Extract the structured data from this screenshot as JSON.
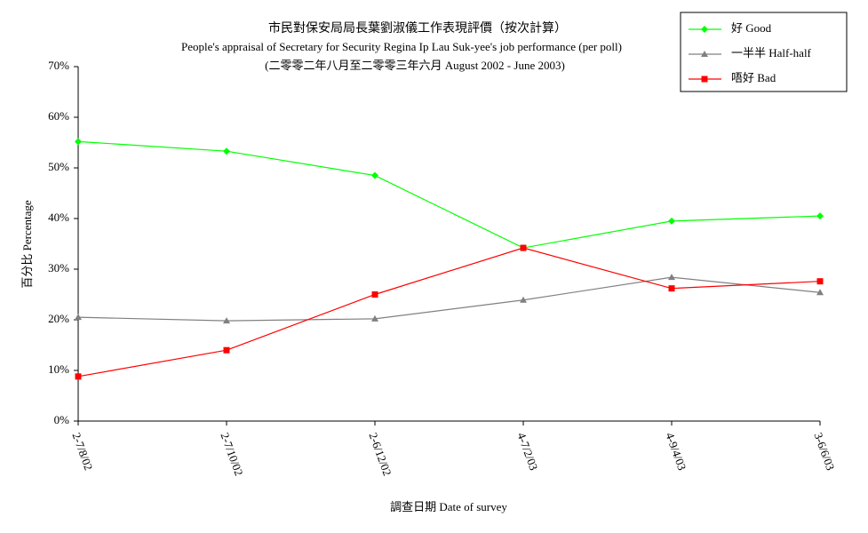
{
  "chart_data": {
    "type": "line",
    "title": "市民對保安局局長葉劉淑儀工作表現評價（按次計算）",
    "subtitle": "People's appraisal of Secretary for Security Regina Ip Lau Suk-yee's job performance (per poll)",
    "subtitle2": "(二零零二年八月至二零零三年六月 August 2002 - June 2003)",
    "x_label": "調查日期 Date of survey",
    "y_label": "百分比 Percentage",
    "categories": [
      "2-7/8/02",
      "2-7/10/02",
      "2-6/12/02",
      "4-7/2/03",
      "4-9/4/03",
      "3-6/6/03"
    ],
    "series": [
      {
        "name": "好 Good",
        "color": "#00ff00",
        "marker": "diamond",
        "values": [
          55.2,
          53.3,
          48.5,
          34.2,
          39.5,
          40.5
        ]
      },
      {
        "name": "一半半 Half-half",
        "color": "#808080",
        "marker": "triangle",
        "values": [
          20.5,
          19.8,
          20.2,
          23.9,
          28.4,
          25.4
        ]
      },
      {
        "name": "唔好 Bad",
        "color": "#ff0000",
        "marker": "square",
        "values": [
          8.8,
          14.0,
          25.0,
          34.2,
          26.2,
          27.6
        ]
      }
    ],
    "ylim": [
      0,
      70
    ],
    "yticks": [
      {
        "value": 0,
        "label": "0%"
      },
      {
        "value": 10,
        "label": "10%"
      },
      {
        "value": 20,
        "label": "20%"
      },
      {
        "value": 30,
        "label": "30%"
      },
      {
        "value": 40,
        "label": "40%"
      },
      {
        "value": 50,
        "label": "50%"
      },
      {
        "value": 60,
        "label": "60%"
      },
      {
        "value": 70,
        "label": "70%"
      }
    ],
    "grid": false,
    "legend_position": "top-right"
  }
}
